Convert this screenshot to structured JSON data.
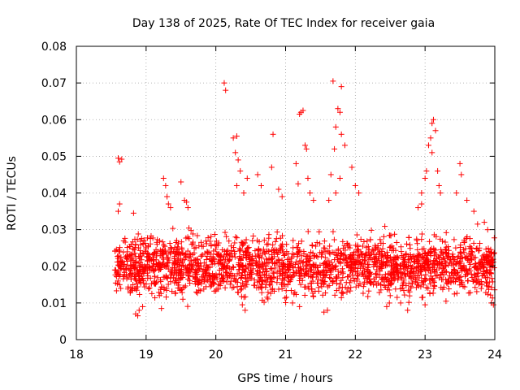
{
  "chart_data": {
    "type": "scatter",
    "title": "Day 138 of 2025, Rate Of TEC Index for receiver gaia",
    "xlabel": "GPS time / hours",
    "ylabel": "ROTI / TECUs",
    "xlim": [
      18,
      24
    ],
    "ylim": [
      0,
      0.08
    ],
    "x_ticks": [
      "18",
      "19",
      "20",
      "21",
      "22",
      "23",
      "24"
    ],
    "y_ticks": [
      "0",
      "0.01",
      "0.02",
      "0.03",
      "0.04",
      "0.05",
      "0.06",
      "0.07",
      "0.08"
    ],
    "grid": true,
    "marker": "plus",
    "color": "#ff0000",
    "series": [
      {
        "points": [
          [
            18.6,
            0.0495
          ],
          [
            18.62,
            0.0485
          ],
          [
            18.65,
            0.0492
          ],
          [
            18.62,
            0.037
          ],
          [
            18.6,
            0.035
          ],
          [
            18.82,
            0.0345
          ],
          [
            18.85,
            0.007
          ],
          [
            18.88,
            0.0065
          ],
          [
            18.9,
            0.008
          ],
          [
            18.95,
            0.009
          ],
          [
            19.25,
            0.044
          ],
          [
            19.28,
            0.042
          ],
          [
            19.3,
            0.039
          ],
          [
            19.32,
            0.037
          ],
          [
            19.35,
            0.036
          ],
          [
            19.22,
            0.0085
          ],
          [
            19.5,
            0.043
          ],
          [
            19.55,
            0.038
          ],
          [
            19.6,
            0.036
          ],
          [
            19.58,
            0.0375
          ],
          [
            20.12,
            0.07
          ],
          [
            20.14,
            0.068
          ],
          [
            20.25,
            0.055
          ],
          [
            20.3,
            0.0555
          ],
          [
            20.28,
            0.051
          ],
          [
            20.32,
            0.049
          ],
          [
            20.35,
            0.046
          ],
          [
            20.3,
            0.042
          ],
          [
            20.4,
            0.04
          ],
          [
            20.45,
            0.044
          ],
          [
            20.42,
            0.008
          ],
          [
            20.38,
            0.0095
          ],
          [
            20.6,
            0.045
          ],
          [
            20.65,
            0.042
          ],
          [
            20.82,
            0.056
          ],
          [
            20.8,
            0.047
          ],
          [
            20.9,
            0.041
          ],
          [
            20.95,
            0.039
          ],
          [
            21.15,
            0.048
          ],
          [
            21.2,
            0.0615
          ],
          [
            21.22,
            0.062
          ],
          [
            21.25,
            0.0625
          ],
          [
            21.28,
            0.053
          ],
          [
            21.3,
            0.052
          ],
          [
            21.32,
            0.044
          ],
          [
            21.18,
            0.0425
          ],
          [
            21.35,
            0.04
          ],
          [
            21.4,
            0.038
          ],
          [
            21.1,
            0.01
          ],
          [
            21.2,
            0.009
          ],
          [
            21.68,
            0.0705
          ],
          [
            21.8,
            0.069
          ],
          [
            21.75,
            0.063
          ],
          [
            21.78,
            0.062
          ],
          [
            21.72,
            0.058
          ],
          [
            21.8,
            0.056
          ],
          [
            21.85,
            0.053
          ],
          [
            21.7,
            0.052
          ],
          [
            21.65,
            0.045
          ],
          [
            21.78,
            0.044
          ],
          [
            21.72,
            0.04
          ],
          [
            21.62,
            0.038
          ],
          [
            21.95,
            0.047
          ],
          [
            22.0,
            0.042
          ],
          [
            22.05,
            0.04
          ],
          [
            21.6,
            0.008
          ],
          [
            21.55,
            0.0075
          ],
          [
            22.45,
            0.009
          ],
          [
            22.65,
            0.01
          ],
          [
            22.75,
            0.008
          ],
          [
            22.95,
            0.04
          ],
          [
            23.0,
            0.044
          ],
          [
            23.02,
            0.046
          ],
          [
            23.05,
            0.053
          ],
          [
            23.08,
            0.055
          ],
          [
            23.1,
            0.059
          ],
          [
            23.12,
            0.06
          ],
          [
            23.15,
            0.057
          ],
          [
            23.1,
            0.051
          ],
          [
            23.18,
            0.046
          ],
          [
            23.2,
            0.042
          ],
          [
            23.22,
            0.04
          ],
          [
            22.95,
            0.037
          ],
          [
            22.9,
            0.036
          ],
          [
            23.5,
            0.048
          ],
          [
            23.52,
            0.045
          ],
          [
            23.45,
            0.04
          ],
          [
            23.6,
            0.038
          ],
          [
            23.7,
            0.035
          ],
          [
            23.85,
            0.032
          ],
          [
            23.95,
            0.01
          ],
          [
            23.98,
            0.0095
          ],
          [
            23.0,
            0.0095
          ],
          [
            22.5,
            0.012
          ],
          [
            23.3,
            0.0105
          ]
        ]
      }
    ],
    "dense_band": {
      "x_range": [
        18.55,
        24.0
      ],
      "y_range": [
        0.01,
        0.03
      ],
      "count": 2200
    }
  }
}
